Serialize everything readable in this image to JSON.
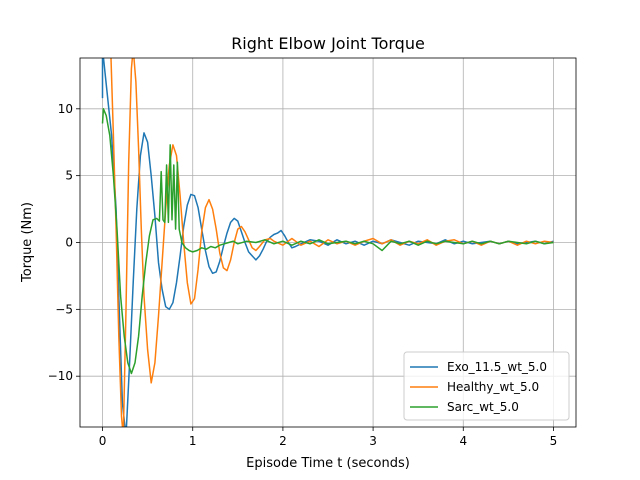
{
  "chart_data": {
    "type": "line",
    "title": "Right Elbow Joint Torque",
    "xlabel": "Episode Time t (seconds)",
    "ylabel": "Torque (Nm)",
    "xlim": [
      -0.25,
      5.25
    ],
    "ylim": [
      -13.8,
      13.8
    ],
    "xticks": [
      0,
      1,
      2,
      3,
      4,
      5
    ],
    "yticks": [
      -10,
      -5,
      0,
      5,
      10
    ],
    "xtick_labels": [
      "0",
      "1",
      "2",
      "3",
      "4",
      "5"
    ],
    "ytick_labels": [
      "−10",
      "−5",
      "0",
      "5",
      "10"
    ],
    "grid": true,
    "legend_position": "lower-right",
    "series": [
      {
        "name": "Exo_11.5_wt_5.0",
        "color": "#1f77b4",
        "points": [
          [
            0,
            10.8
          ],
          [
            0,
            14.5
          ],
          [
            0.1,
            8.0
          ],
          [
            0.15,
            2.5
          ],
          [
            0.18,
            -4
          ],
          [
            0.22,
            -12
          ],
          [
            0.26,
            -14.5
          ],
          [
            0.3,
            -9
          ],
          [
            0.34,
            -3
          ],
          [
            0.38,
            2.5
          ],
          [
            0.42,
            6.5
          ],
          [
            0.46,
            8.2
          ],
          [
            0.5,
            7.5
          ],
          [
            0.54,
            5.0
          ],
          [
            0.58,
            2.0
          ],
          [
            0.62,
            -1.5
          ],
          [
            0.66,
            -3.5
          ],
          [
            0.7,
            -4.8
          ],
          [
            0.74,
            -5.0
          ],
          [
            0.78,
            -4.5
          ],
          [
            0.82,
            -3.0
          ],
          [
            0.86,
            -1.0
          ],
          [
            0.9,
            1.2
          ],
          [
            0.94,
            2.8
          ],
          [
            0.98,
            3.6
          ],
          [
            1.02,
            3.5
          ],
          [
            1.06,
            2.6
          ],
          [
            1.1,
            1.0
          ],
          [
            1.14,
            -0.6
          ],
          [
            1.18,
            -1.8
          ],
          [
            1.22,
            -2.3
          ],
          [
            1.26,
            -2.2
          ],
          [
            1.3,
            -1.4
          ],
          [
            1.34,
            -0.3
          ],
          [
            1.38,
            0.7
          ],
          [
            1.42,
            1.5
          ],
          [
            1.46,
            1.8
          ],
          [
            1.5,
            1.6
          ],
          [
            1.54,
            0.8
          ],
          [
            1.58,
            0.0
          ],
          [
            1.62,
            -0.7
          ],
          [
            1.66,
            -1.0
          ],
          [
            1.7,
            -1.3
          ],
          [
            1.74,
            -1.0
          ],
          [
            1.78,
            -0.5
          ],
          [
            1.82,
            0.1
          ],
          [
            1.86,
            0.4
          ],
          [
            1.9,
            0.6
          ],
          [
            1.94,
            0.7
          ],
          [
            1.98,
            0.9
          ],
          [
            2.02,
            0.5
          ],
          [
            2.06,
            0.0
          ],
          [
            2.1,
            -0.4
          ],
          [
            2.14,
            -0.3
          ],
          [
            2.2,
            -0.1
          ],
          [
            2.3,
            0.2
          ],
          [
            2.4,
            0.1
          ],
          [
            2.5,
            -0.2
          ],
          [
            2.6,
            0.2
          ],
          [
            2.7,
            -0.1
          ],
          [
            2.8,
            0.1
          ],
          [
            2.9,
            -0.2
          ],
          [
            3.0,
            0.1
          ],
          [
            3.1,
            -0.1
          ],
          [
            3.2,
            0.2
          ],
          [
            3.3,
            0.0
          ],
          [
            3.4,
            -0.2
          ],
          [
            3.5,
            0.1
          ],
          [
            3.6,
            0.0
          ],
          [
            3.7,
            -0.1
          ],
          [
            3.8,
            0.2
          ],
          [
            3.9,
            -0.1
          ],
          [
            4.0,
            0.1
          ],
          [
            4.1,
            -0.1
          ],
          [
            4.2,
            0.0
          ],
          [
            4.3,
            0.1
          ],
          [
            4.4,
            -0.1
          ],
          [
            4.5,
            0.1
          ],
          [
            4.6,
            -0.1
          ],
          [
            4.7,
            0.0
          ],
          [
            4.8,
            0.1
          ],
          [
            4.9,
            -0.1
          ],
          [
            5.0,
            0.1
          ]
        ]
      },
      {
        "name": "Healthy_wt_5.0",
        "color": "#ff7f0e",
        "points": [
          [
            0.09,
            14.5
          ],
          [
            0.12,
            8
          ],
          [
            0.15,
            1
          ],
          [
            0.18,
            -7
          ],
          [
            0.21,
            -13
          ],
          [
            0.23,
            -14.5
          ],
          [
            0.26,
            -5
          ],
          [
            0.29,
            6
          ],
          [
            0.32,
            13
          ],
          [
            0.34,
            14.5
          ],
          [
            0.37,
            12
          ],
          [
            0.4,
            7
          ],
          [
            0.43,
            1
          ],
          [
            0.46,
            -4
          ],
          [
            0.5,
            -8
          ],
          [
            0.54,
            -10.5
          ],
          [
            0.58,
            -9.0
          ],
          [
            0.62,
            -5.5
          ],
          [
            0.66,
            -1.5
          ],
          [
            0.7,
            2.5
          ],
          [
            0.74,
            5.8
          ],
          [
            0.78,
            7.3
          ],
          [
            0.82,
            6.5
          ],
          [
            0.86,
            3.5
          ],
          [
            0.9,
            0.0
          ],
          [
            0.94,
            -3.0
          ],
          [
            0.98,
            -4.6
          ],
          [
            1.02,
            -4.2
          ],
          [
            1.06,
            -2.0
          ],
          [
            1.1,
            0.8
          ],
          [
            1.14,
            2.6
          ],
          [
            1.18,
            3.2
          ],
          [
            1.22,
            2.5
          ],
          [
            1.26,
            1.0
          ],
          [
            1.3,
            -0.8
          ],
          [
            1.34,
            -1.9
          ],
          [
            1.38,
            -2.1
          ],
          [
            1.42,
            -1.3
          ],
          [
            1.46,
            0.0
          ],
          [
            1.5,
            1.0
          ],
          [
            1.54,
            1.2
          ],
          [
            1.58,
            0.8
          ],
          [
            1.62,
            0.2
          ],
          [
            1.66,
            -0.4
          ],
          [
            1.7,
            -0.6
          ],
          [
            1.74,
            -0.3
          ],
          [
            1.8,
            0.2
          ],
          [
            1.86,
            0.3
          ],
          [
            1.9,
            0.1
          ],
          [
            2.0,
            -0.2
          ],
          [
            2.1,
            0.3
          ],
          [
            2.2,
            -0.2
          ],
          [
            2.3,
            0.1
          ],
          [
            2.4,
            -0.3
          ],
          [
            2.5,
            0.2
          ],
          [
            2.6,
            -0.1
          ],
          [
            2.7,
            0.1
          ],
          [
            2.8,
            -0.2
          ],
          [
            2.9,
            0.1
          ],
          [
            3.0,
            0.3
          ],
          [
            3.1,
            -0.1
          ],
          [
            3.2,
            0.2
          ],
          [
            3.3,
            -0.2
          ],
          [
            3.4,
            0.1
          ],
          [
            3.5,
            -0.1
          ],
          [
            3.6,
            0.2
          ],
          [
            3.7,
            -0.2
          ],
          [
            3.8,
            0.1
          ],
          [
            3.9,
            0.2
          ],
          [
            4.0,
            -0.1
          ],
          [
            4.1,
            0.1
          ],
          [
            4.2,
            -0.2
          ],
          [
            4.3,
            0.1
          ],
          [
            4.4,
            -0.1
          ],
          [
            4.5,
            0.1
          ],
          [
            4.6,
            -0.2
          ],
          [
            4.7,
            0.1
          ],
          [
            4.8,
            -0.1
          ],
          [
            4.9,
            0.1
          ],
          [
            5.0,
            0.0
          ]
        ]
      },
      {
        "name": "Sarc_wt_5.0",
        "color": "#2ca02c",
        "points": [
          [
            0.0,
            8.9
          ],
          [
            0.01,
            10.0
          ],
          [
            0.04,
            9.5
          ],
          [
            0.08,
            8.0
          ],
          [
            0.12,
            5.0
          ],
          [
            0.16,
            1.0
          ],
          [
            0.2,
            -4.0
          ],
          [
            0.24,
            -7.0
          ],
          [
            0.28,
            -9.0
          ],
          [
            0.32,
            -9.8
          ],
          [
            0.36,
            -9.0
          ],
          [
            0.4,
            -7.0
          ],
          [
            0.44,
            -4.0
          ],
          [
            0.48,
            -1.5
          ],
          [
            0.52,
            0.5
          ],
          [
            0.56,
            1.7
          ],
          [
            0.6,
            1.8
          ],
          [
            0.63,
            1.6
          ],
          [
            0.65,
            5.3
          ],
          [
            0.67,
            1.7
          ],
          [
            0.69,
            1.5
          ],
          [
            0.71,
            5.8
          ],
          [
            0.73,
            1.5
          ],
          [
            0.75,
            7.3
          ],
          [
            0.77,
            1.7
          ],
          [
            0.79,
            5.8
          ],
          [
            0.81,
            1.0
          ],
          [
            0.83,
            6.0
          ],
          [
            0.85,
            1.0
          ],
          [
            0.88,
            0.0
          ],
          [
            0.92,
            -0.4
          ],
          [
            0.96,
            -0.6
          ],
          [
            1.0,
            -0.7
          ],
          [
            1.05,
            -0.6
          ],
          [
            1.1,
            -0.4
          ],
          [
            1.15,
            -0.5
          ],
          [
            1.2,
            -0.3
          ],
          [
            1.25,
            -0.4
          ],
          [
            1.3,
            -0.2
          ],
          [
            1.35,
            -0.1
          ],
          [
            1.4,
            0.0
          ],
          [
            1.45,
            0.1
          ],
          [
            1.5,
            -0.1
          ],
          [
            1.6,
            0.1
          ],
          [
            1.7,
            0.0
          ],
          [
            1.8,
            0.2
          ],
          [
            1.9,
            -0.1
          ],
          [
            2.0,
            0.1
          ],
          [
            2.1,
            -0.2
          ],
          [
            2.2,
            0.1
          ],
          [
            2.3,
            -0.1
          ],
          [
            2.4,
            0.2
          ],
          [
            2.5,
            -0.1
          ],
          [
            2.6,
            0.0
          ],
          [
            2.7,
            0.1
          ],
          [
            2.8,
            -0.1
          ],
          [
            2.9,
            0.1
          ],
          [
            3.0,
            -0.1
          ],
          [
            3.1,
            -0.6
          ],
          [
            3.2,
            0.1
          ],
          [
            3.3,
            -0.1
          ],
          [
            3.4,
            0.1
          ],
          [
            3.5,
            -0.2
          ],
          [
            3.6,
            0.1
          ],
          [
            3.7,
            -0.1
          ],
          [
            3.8,
            0.1
          ],
          [
            3.9,
            0.0
          ],
          [
            4.0,
            -0.1
          ],
          [
            4.1,
            0.1
          ],
          [
            4.2,
            -0.1
          ],
          [
            4.3,
            0.1
          ],
          [
            4.4,
            -0.1
          ],
          [
            4.5,
            0.1
          ],
          [
            4.6,
            0.0
          ],
          [
            4.7,
            -0.1
          ],
          [
            4.8,
            0.1
          ],
          [
            4.9,
            -0.1
          ],
          [
            5.0,
            0.0
          ]
        ]
      }
    ]
  }
}
